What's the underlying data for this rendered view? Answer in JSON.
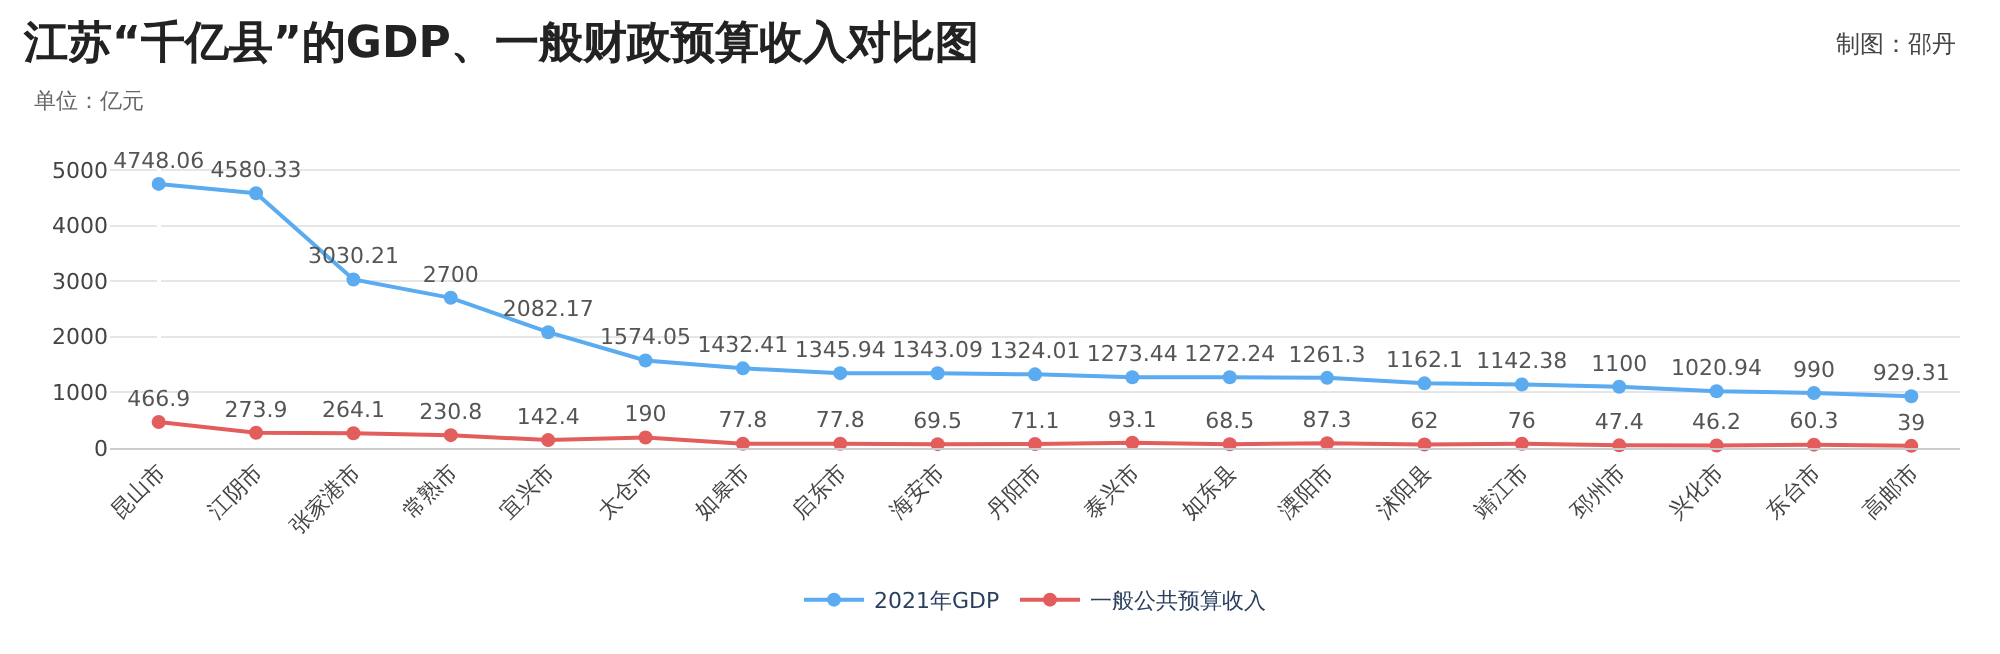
{
  "chart_data": {
    "type": "line",
    "title": "江苏“千亿县”的GDP、一般财政预算收入对比图",
    "subtitle": "单位：亿元",
    "annotations": [
      "制图：邵丹"
    ],
    "categories": [
      "昆山市",
      "江阴市",
      "张家港市",
      "常熟市",
      "宜兴市",
      "太仓市",
      "如皋市",
      "启东市",
      "海安市",
      "丹阳市",
      "泰兴市",
      "如东县",
      "溧阳市",
      "沭阳县",
      "靖江市",
      "邳州市",
      "兴化市",
      "东台市",
      "高邮市"
    ],
    "series": [
      {
        "name": "2021年GDP",
        "color": "#5aabef",
        "values": [
          4748.06,
          4580.33,
          3030.21,
          2700,
          2082.17,
          1574.05,
          1432.41,
          1345.94,
          1343.09,
          1324.01,
          1273.44,
          1272.24,
          1261.3,
          1162.1,
          1142.38,
          1100,
          1020.94,
          990,
          929.31
        ]
      },
      {
        "name": "一般公共预算收入",
        "color": "#e35d5d",
        "values": [
          466.9,
          273.9,
          264.1,
          230.8,
          142.4,
          190,
          77.8,
          77.8,
          69.5,
          71.1,
          93.1,
          68.5,
          87.3,
          62,
          76,
          47.4,
          46.2,
          60.3,
          39
        ]
      }
    ],
    "ylim": [
      0,
      5250
    ],
    "yticks": [
      0,
      1000,
      2000,
      3000,
      4000,
      5000
    ],
    "grid": "y",
    "legend": "bottom",
    "marker": "circle",
    "line_style": "solid",
    "data_labels": true
  }
}
